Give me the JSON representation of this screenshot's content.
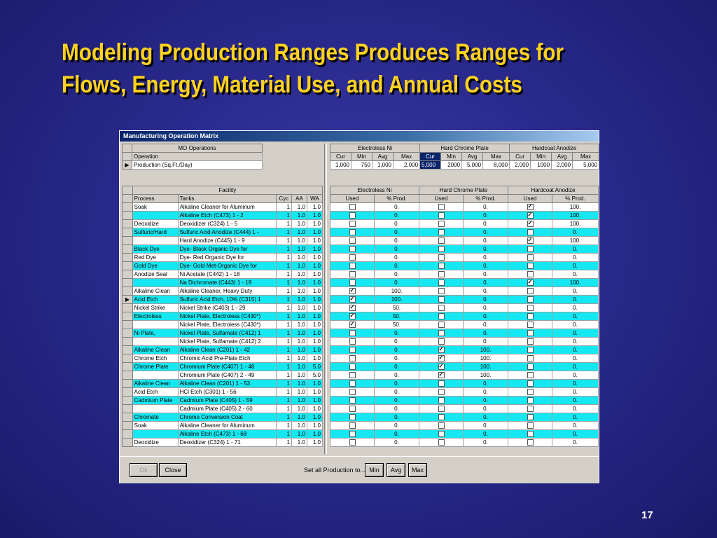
{
  "slide": {
    "title_line1": "Modeling Production Ranges Produces Ranges for",
    "title_line2": "Flows, Energy, Material Use, and Annual Costs",
    "number": "17"
  },
  "window": {
    "title": "Manufacturing Operation Matrix"
  },
  "mo": {
    "header": "MO Operations",
    "operation_label": "Operation",
    "operation_value": "Production (Sq.Ft./Day)",
    "row_marker": "▶"
  },
  "production": {
    "groups": [
      "Electroless Ni",
      "Hard Chrome Plate",
      "Hardcoat Anodize"
    ],
    "subheaders": [
      "Cur",
      "Min",
      "Avg",
      "Max",
      "Cur",
      "Min",
      "Avg",
      "Max",
      "Cur",
      "Min",
      "Avg",
      "Max"
    ],
    "values": [
      "1,000",
      "750",
      "1,000",
      "2,000",
      "5,000",
      "2000",
      "5,000",
      "8,000",
      "2,000",
      "1000",
      "2,000",
      "5,000"
    ]
  },
  "facility": {
    "header": "Facility",
    "columns": [
      "Process",
      "Tanks",
      "Cyc",
      "AA",
      "WA"
    ],
    "current_row_index": 11,
    "row_marker": "▶",
    "rows": [
      {
        "process": "Soak",
        "tank": "Alkaline Cleaner for Aluminum",
        "cyc": "1",
        "aa": "1.0",
        "wa": "1.0",
        "hl": false
      },
      {
        "process": "",
        "tank": "Alkaline Etch (C473) 1 - 2",
        "cyc": "1",
        "aa": "1.0",
        "wa": "1.0",
        "hl": true
      },
      {
        "process": "Deoxidize",
        "tank": "Deoxidizer (C324) 1 - 5",
        "cyc": "1",
        "aa": "1.0",
        "wa": "1.0",
        "hl": false
      },
      {
        "process": "Sulfuric/Hard",
        "tank": "Sulfuric Acid Anodize (C444) 1 -",
        "cyc": "1",
        "aa": "1.0",
        "wa": "1.0",
        "hl": true
      },
      {
        "process": "",
        "tank": "Hard Anodize (C445) 1 - 9",
        "cyc": "1",
        "aa": "1.0",
        "wa": "1.0",
        "hl": false
      },
      {
        "process": "Black Dye",
        "tank": "Dye- Black Organic Dye for",
        "cyc": "1",
        "aa": "1.0",
        "wa": "1.0",
        "hl": true
      },
      {
        "process": "Red Dye",
        "tank": "Dye- Red Organic Dye for",
        "cyc": "1",
        "aa": "1.0",
        "wa": "1.0",
        "hl": false
      },
      {
        "process": "Gold Dye",
        "tank": "Dye- Gold Met-Organic Dye for",
        "cyc": "1",
        "aa": "1.0",
        "wa": "1.0",
        "hl": true
      },
      {
        "process": "Anodize Seal",
        "tank": "Ni Acetate (C442) 1 - 18",
        "cyc": "1",
        "aa": "1.0",
        "wa": "1.0",
        "hl": false
      },
      {
        "process": "",
        "tank": "Na Dichromate (C443) 1 - 19",
        "cyc": "1",
        "aa": "1.0",
        "wa": "1.0",
        "hl": true
      },
      {
        "process": "Alkaline Clean",
        "tank": "Alkaline Cleaner, Heavy Duty",
        "cyc": "1",
        "aa": "1.0",
        "wa": "1.0",
        "hl": false
      },
      {
        "process": "Acid Etch",
        "tank": "Sulfuric Acid Etch, 10% (C315) 1",
        "cyc": "1",
        "aa": "1.0",
        "wa": "1.0",
        "hl": true
      },
      {
        "process": "Nickel Strike",
        "tank": "Nickel Strike (C403) 1 - 29",
        "cyc": "1",
        "aa": "1.0",
        "wa": "1.0",
        "hl": false
      },
      {
        "process": "Electroless",
        "tank": "Nickel Plate, Electroless (C430*)",
        "cyc": "1",
        "aa": "1.0",
        "wa": "1.0",
        "hl": true
      },
      {
        "process": "",
        "tank": "Nickel Plate, Electroless (C430*)",
        "cyc": "1",
        "aa": "1.0",
        "wa": "1.0",
        "hl": false
      },
      {
        "process": "Ni Plate,",
        "tank": "Nickel Plate, Sulfamate (C412) 1",
        "cyc": "1",
        "aa": "1.0",
        "wa": "1.0",
        "hl": true
      },
      {
        "process": "",
        "tank": "Nickel Plate, Sulfamate (C412) 2",
        "cyc": "1",
        "aa": "1.0",
        "wa": "1.0",
        "hl": false
      },
      {
        "process": "Alkaline Clean",
        "tank": "Alkaline Clean (C201) 1 - 42",
        "cyc": "1",
        "aa": "1.0",
        "wa": "1.0",
        "hl": true
      },
      {
        "process": "Chrome Etch",
        "tank": "Chromic Acid Pre-Plate Etch",
        "cyc": "1",
        "aa": "1.0",
        "wa": "1.0",
        "hl": false
      },
      {
        "process": "Chrome Plate",
        "tank": "Chromium Plate (C407) 1 - 48",
        "cyc": "1",
        "aa": "1.0",
        "wa": "5.0",
        "hl": true
      },
      {
        "process": "",
        "tank": "Chromium Plate (C407) 2 - 49",
        "cyc": "1",
        "aa": "1.0",
        "wa": "5.0",
        "hl": false
      },
      {
        "process": "Alkaline Clean",
        "tank": "Alkaline Clean (C201) 1 - 53",
        "cyc": "1",
        "aa": "1.0",
        "wa": "1.0",
        "hl": true
      },
      {
        "process": "Acid Etch",
        "tank": "HCl  Etch (C301) 1 - 56",
        "cyc": "1",
        "aa": "1.0",
        "wa": "1.0",
        "hl": false
      },
      {
        "process": "Cadmium Plate",
        "tank": "Cadmium Plate  (C405) 1 - 59",
        "cyc": "1",
        "aa": "1.0",
        "wa": "1.0",
        "hl": true
      },
      {
        "process": "",
        "tank": "Cadmium Plate  (C405) 2 - 60",
        "cyc": "1",
        "aa": "1.0",
        "wa": "1.0",
        "hl": false
      },
      {
        "process": "Chromate",
        "tank": "Chrome Conversion Coat",
        "cyc": "1",
        "aa": "1.0",
        "wa": "1.0",
        "hl": true
      },
      {
        "process": "Soak",
        "tank": "Alkaline Cleaner for Aluminum",
        "cyc": "1",
        "aa": "1.0",
        "wa": "1.0",
        "hl": false
      },
      {
        "process": "",
        "tank": "Alkaline Etch (C473) 1 - 68",
        "cyc": "1",
        "aa": "1.0",
        "wa": "1.0",
        "hl": true
      },
      {
        "process": "Deoxidize",
        "tank": "Deoxidizer (C324) 1 - 71",
        "cyc": "1",
        "aa": "1.0",
        "wa": "1.0",
        "hl": false
      }
    ]
  },
  "usage": {
    "groups": [
      "Electroless Ni",
      "Hard Chrome Plate",
      "Hardcoat Anodize"
    ],
    "subheaders": [
      "Used",
      "% Prod.",
      "Used",
      "% Prod.",
      "Used",
      "% Prod."
    ],
    "rows": [
      {
        "u1": false,
        "p1": "0.",
        "u2": false,
        "p2": "0.",
        "u3": true,
        "p3": "100."
      },
      {
        "u1": false,
        "p1": "0.",
        "u2": false,
        "p2": "0.",
        "u3": true,
        "p3": "100."
      },
      {
        "u1": false,
        "p1": "0.",
        "u2": false,
        "p2": "0.",
        "u3": true,
        "p3": "100."
      },
      {
        "u1": false,
        "p1": "0.",
        "u2": false,
        "p2": "0.",
        "u3": false,
        "p3": "0."
      },
      {
        "u1": false,
        "p1": "0.",
        "u2": false,
        "p2": "0.",
        "u3": true,
        "p3": "100."
      },
      {
        "u1": false,
        "p1": "0.",
        "u2": false,
        "p2": "0.",
        "u3": false,
        "p3": "0."
      },
      {
        "u1": false,
        "p1": "0.",
        "u2": false,
        "p2": "0.",
        "u3": false,
        "p3": "0."
      },
      {
        "u1": false,
        "p1": "0.",
        "u2": false,
        "p2": "0.",
        "u3": false,
        "p3": "0."
      },
      {
        "u1": false,
        "p1": "0.",
        "u2": false,
        "p2": "0.",
        "u3": false,
        "p3": "0."
      },
      {
        "u1": false,
        "p1": "0.",
        "u2": false,
        "p2": "0.",
        "u3": true,
        "p3": "100."
      },
      {
        "u1": true,
        "p1": "100.",
        "u2": false,
        "p2": "0.",
        "u3": false,
        "p3": "0."
      },
      {
        "u1": true,
        "p1": "100.",
        "u2": false,
        "p2": "0.",
        "u3": false,
        "p3": "0."
      },
      {
        "u1": true,
        "p1": "50.",
        "u2": false,
        "p2": "0.",
        "u3": false,
        "p3": "0."
      },
      {
        "u1": true,
        "p1": "50.",
        "u2": false,
        "p2": "0.",
        "u3": false,
        "p3": "0."
      },
      {
        "u1": true,
        "p1": "50.",
        "u2": false,
        "p2": "0.",
        "u3": false,
        "p3": "0."
      },
      {
        "u1": false,
        "p1": "0.",
        "u2": false,
        "p2": "0.",
        "u3": false,
        "p3": "0."
      },
      {
        "u1": false,
        "p1": "0.",
        "u2": false,
        "p2": "0.",
        "u3": false,
        "p3": "0."
      },
      {
        "u1": false,
        "p1": "0.",
        "u2": true,
        "p2": "100.",
        "u3": false,
        "p3": "0."
      },
      {
        "u1": false,
        "p1": "0.",
        "u2": true,
        "p2": "100.",
        "u3": false,
        "p3": "0."
      },
      {
        "u1": false,
        "p1": "0.",
        "u2": true,
        "p2": "100.",
        "u3": false,
        "p3": "0."
      },
      {
        "u1": false,
        "p1": "0.",
        "u2": true,
        "p2": "100.",
        "u3": false,
        "p3": "0."
      },
      {
        "u1": false,
        "p1": "0.",
        "u2": false,
        "p2": "0.",
        "u3": false,
        "p3": "0."
      },
      {
        "u1": false,
        "p1": "0.",
        "u2": false,
        "p2": "0.",
        "u3": false,
        "p3": "0."
      },
      {
        "u1": false,
        "p1": "0.",
        "u2": false,
        "p2": "0.",
        "u3": false,
        "p3": "0."
      },
      {
        "u1": false,
        "p1": "0.",
        "u2": false,
        "p2": "0.",
        "u3": false,
        "p3": "0."
      },
      {
        "u1": false,
        "p1": "0.",
        "u2": false,
        "p2": "0.",
        "u3": false,
        "p3": "0."
      },
      {
        "u1": false,
        "p1": "0.",
        "u2": false,
        "p2": "0.",
        "u3": false,
        "p3": "0."
      },
      {
        "u1": false,
        "p1": "0.",
        "u2": false,
        "p2": "0.",
        "u3": false,
        "p3": "0."
      },
      {
        "u1": false,
        "p1": "0.",
        "u2": false,
        "p2": "0.",
        "u3": false,
        "p3": "0."
      }
    ]
  },
  "buttons": {
    "ok": "Ok",
    "close": "Close",
    "set_all_label": "Set all Production to...",
    "min": "Min",
    "avg": "Avg",
    "max": "Max"
  },
  "colors": {
    "highlight_row": "#17e7f0",
    "title_text": "#ffd21e",
    "background": "#2a2a8e"
  }
}
